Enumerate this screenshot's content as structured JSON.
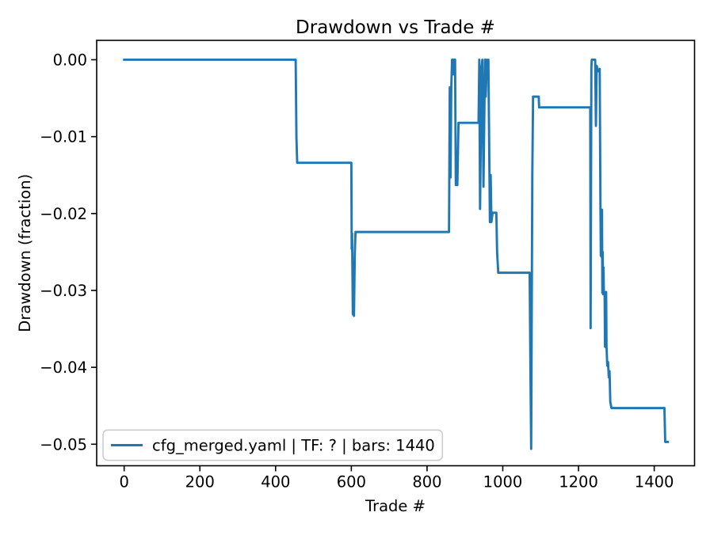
{
  "figure": {
    "title": "Drawdown vs Trade #",
    "xlabel": "Trade #",
    "ylabel": "Drawdown (fraction)",
    "legend_label": "cfg_merged.yaml | TF: ? | bars: 1440",
    "line_color": "#1f77b4"
  },
  "chart_data": {
    "type": "line",
    "title": "Drawdown vs Trade #",
    "xlabel": "Trade #",
    "ylabel": "Drawdown (fraction)",
    "legend": [
      "cfg_merged.yaml | TF: ? | bars: 1440"
    ],
    "legend_position": "lower left",
    "grid": false,
    "x_ticks": [
      0,
      200,
      400,
      600,
      800,
      1000,
      1200,
      1400
    ],
    "y_ticks": [
      0,
      -0.01,
      -0.02,
      -0.03,
      -0.04,
      -0.05
    ],
    "y_tick_labels": [
      "0.00",
      "−0.01",
      "−0.02",
      "−0.03",
      "−0.04",
      "−0.05"
    ],
    "xlim": [
      -72.6,
      1506.5
    ],
    "ylim": [
      -0.0528,
      0.00252
    ],
    "series": [
      {
        "name": "cfg_merged.yaml | TF: ? | bars: 1440",
        "color": "#1f77b4",
        "points": [
          [
            0,
            0
          ],
          [
            453,
            0
          ],
          [
            455,
            -0.0101
          ],
          [
            457,
            -0.0134
          ],
          [
            600,
            -0.0134
          ],
          [
            601,
            -0.0246
          ],
          [
            602,
            -0.0226
          ],
          [
            604,
            -0.0331
          ],
          [
            606,
            -0.0318
          ],
          [
            607,
            -0.0333
          ],
          [
            609,
            -0.0255
          ],
          [
            611,
            -0.0224
          ],
          [
            858,
            -0.0224
          ],
          [
            860,
            -0.0036
          ],
          [
            862,
            -0.0153
          ],
          [
            864,
            -0.0036
          ],
          [
            866,
            0
          ],
          [
            869,
            0
          ],
          [
            870,
            -0.0019
          ],
          [
            872,
            0
          ],
          [
            874,
            0
          ],
          [
            876,
            -0.0163
          ],
          [
            878,
            -0.012
          ],
          [
            880,
            -0.0163
          ],
          [
            883,
            -0.0082
          ],
          [
            936,
            -0.0082
          ],
          [
            938,
            0
          ],
          [
            940,
            -0.0194
          ],
          [
            944,
            -0.001
          ],
          [
            946,
            0
          ],
          [
            949,
            -0.0165
          ],
          [
            953,
            0
          ],
          [
            955,
            -0.0048
          ],
          [
            958,
            0
          ],
          [
            960,
            -0.0008
          ],
          [
            962,
            0
          ],
          [
            966,
            -0.0211
          ],
          [
            968,
            -0.015
          ],
          [
            970,
            -0.0211
          ],
          [
            973,
            -0.0199
          ],
          [
            983,
            -0.0199
          ],
          [
            985,
            -0.025
          ],
          [
            988,
            -0.0277
          ],
          [
            1071,
            -0.0277
          ],
          [
            1073,
            -0.04
          ],
          [
            1075,
            -0.0506
          ],
          [
            1078,
            -0.015
          ],
          [
            1080,
            -0.0048
          ],
          [
            1095,
            -0.0048
          ],
          [
            1096,
            -0.0062
          ],
          [
            1231,
            -0.0062
          ],
          [
            1232,
            -0.0349
          ],
          [
            1234,
            -0.001
          ],
          [
            1235,
            0
          ],
          [
            1244,
            0
          ],
          [
            1246,
            -0.0086
          ],
          [
            1248,
            -0.0008
          ],
          [
            1252,
            -0.0015
          ],
          [
            1256,
            -0.0012
          ],
          [
            1258,
            -0.0193
          ],
          [
            1259,
            -0.0255
          ],
          [
            1260,
            -0.0195
          ],
          [
            1261,
            -0.0256
          ],
          [
            1262,
            -0.0195
          ],
          [
            1263,
            -0.0303
          ],
          [
            1264,
            -0.025
          ],
          [
            1265,
            -0.0305
          ],
          [
            1266,
            -0.027
          ],
          [
            1267,
            -0.0303
          ],
          [
            1269,
            -0.0302
          ],
          [
            1270,
            -0.0373
          ],
          [
            1271,
            -0.0303
          ],
          [
            1272,
            -0.0374
          ],
          [
            1273,
            -0.0302
          ],
          [
            1274,
            -0.0373
          ],
          [
            1276,
            -0.0398
          ],
          [
            1278,
            -0.0393
          ],
          [
            1280,
            -0.0413
          ],
          [
            1282,
            -0.0405
          ],
          [
            1284,
            -0.0445
          ],
          [
            1287,
            -0.0453
          ],
          [
            1427,
            -0.0453
          ],
          [
            1429,
            -0.0497
          ],
          [
            1436,
            -0.0497
          ]
        ]
      }
    ]
  }
}
